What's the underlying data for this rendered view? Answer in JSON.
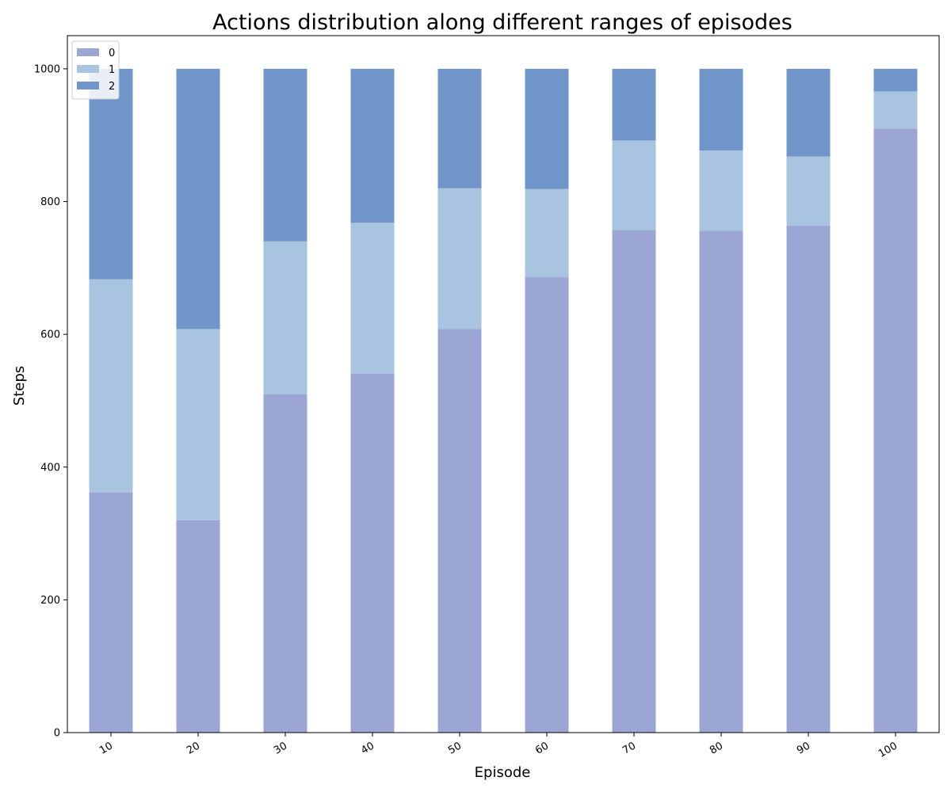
{
  "chart_data": {
    "type": "bar",
    "stacked": true,
    "title": "Actions distribution along different ranges of episodes",
    "xlabel": "Episode",
    "ylabel": "Steps",
    "categories": [
      "10",
      "20",
      "30",
      "40",
      "50",
      "60",
      "70",
      "80",
      "90",
      "100"
    ],
    "series": [
      {
        "name": "0",
        "color": "#9ca6d4",
        "values": [
          362,
          320,
          510,
          541,
          608,
          686,
          757,
          756,
          764,
          910
        ]
      },
      {
        "name": "1",
        "color": "#a9c4e1",
        "values": [
          321,
          288,
          230,
          227,
          212,
          133,
          135,
          121,
          104,
          56
        ]
      },
      {
        "name": "2",
        "color": "#7096c9",
        "values": [
          317,
          392,
          260,
          232,
          180,
          181,
          108,
          123,
          132,
          34
        ]
      }
    ],
    "ylim": [
      0,
      1050
    ],
    "yticks": [
      "0",
      "200",
      "400",
      "600",
      "800",
      "1000"
    ],
    "ytick_values": [
      0,
      200,
      400,
      600,
      800,
      1000
    ],
    "xtick_rotation_deg": 30,
    "legend_placement": "upper-left",
    "grid": false
  }
}
